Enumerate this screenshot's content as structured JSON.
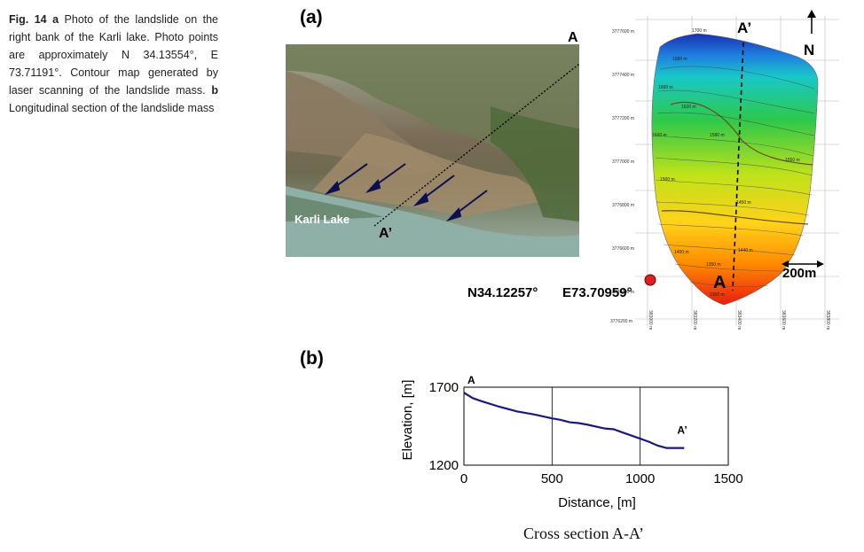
{
  "caption": {
    "fig_label": "Fig. 14",
    "a_label": "a",
    "a_text": "Photo of the landslide on the right bank of the Karli lake. Photo points are approximately N 34.13554°, E 73.71191°. Contour map generated by laser scanning of the landslide mass.",
    "b_label": "b",
    "b_text": "Longitudinal section of the landslide mass"
  },
  "panel_a": {
    "label": "(a)",
    "photo": {
      "point_a": "A",
      "point_a_prime": "A’",
      "lake_label": "Karli Lake"
    },
    "map": {
      "point_a": "A",
      "point_a_prime": "A’",
      "north_label": "N",
      "scale_label": "200m",
      "y_ticks": [
        "3777600 m",
        "3777400 m",
        "3777200 m",
        "3777000 m",
        "3776800 m",
        "3776600 m",
        "3776400 m",
        "3776200 m"
      ],
      "x_ticks": [
        "383000 m",
        "383200 m",
        "383400 m",
        "383600 m",
        "383800 m"
      ],
      "contour_labels": [
        "1700 m",
        "1680 m",
        "1660 m",
        "1620 m",
        "1600 m",
        "1580 m",
        "1550 m",
        "1500 m",
        "1450 m",
        "1440 m",
        "1400 m",
        "1350 m",
        "1300 m"
      ],
      "colors": {
        "high": "#1a2fb0",
        "mid_high": "#18c8c8",
        "mid": "#2ec84a",
        "mid_low": "#d8e21a",
        "low": "#ff8a00",
        "lowest": "#e81c10"
      }
    },
    "coordinates": {
      "lat": "N34.12257°",
      "lon": "E73.70959°"
    }
  },
  "panel_b": {
    "label": "(b)",
    "sub_caption": "Cross section A-A’",
    "chart_data": {
      "type": "line",
      "title": "",
      "xlabel": "Distance, [m]",
      "ylabel": "Elevation, [m]",
      "xlim": [
        0,
        1500
      ],
      "ylim": [
        1200,
        1700
      ],
      "x_ticks": [
        "0",
        "500",
        "1000",
        "1500"
      ],
      "y_ticks": [
        "1200",
        "1700"
      ],
      "grid": "vertical at 500, 1000",
      "series": [
        {
          "color": "#1a1a7a",
          "x": [
            0,
            50,
            100,
            200,
            300,
            400,
            500,
            550,
            600,
            650,
            700,
            800,
            850,
            900,
            1000,
            1050,
            1100,
            1150,
            1250
          ],
          "y": [
            1665,
            1630,
            1610,
            1575,
            1545,
            1525,
            1500,
            1490,
            1475,
            1470,
            1460,
            1435,
            1430,
            1410,
            1370,
            1350,
            1325,
            1310,
            1310
          ]
        }
      ],
      "annotations": [
        {
          "text": "A",
          "at": "start"
        },
        {
          "text": "A’",
          "at": "end"
        }
      ]
    }
  }
}
